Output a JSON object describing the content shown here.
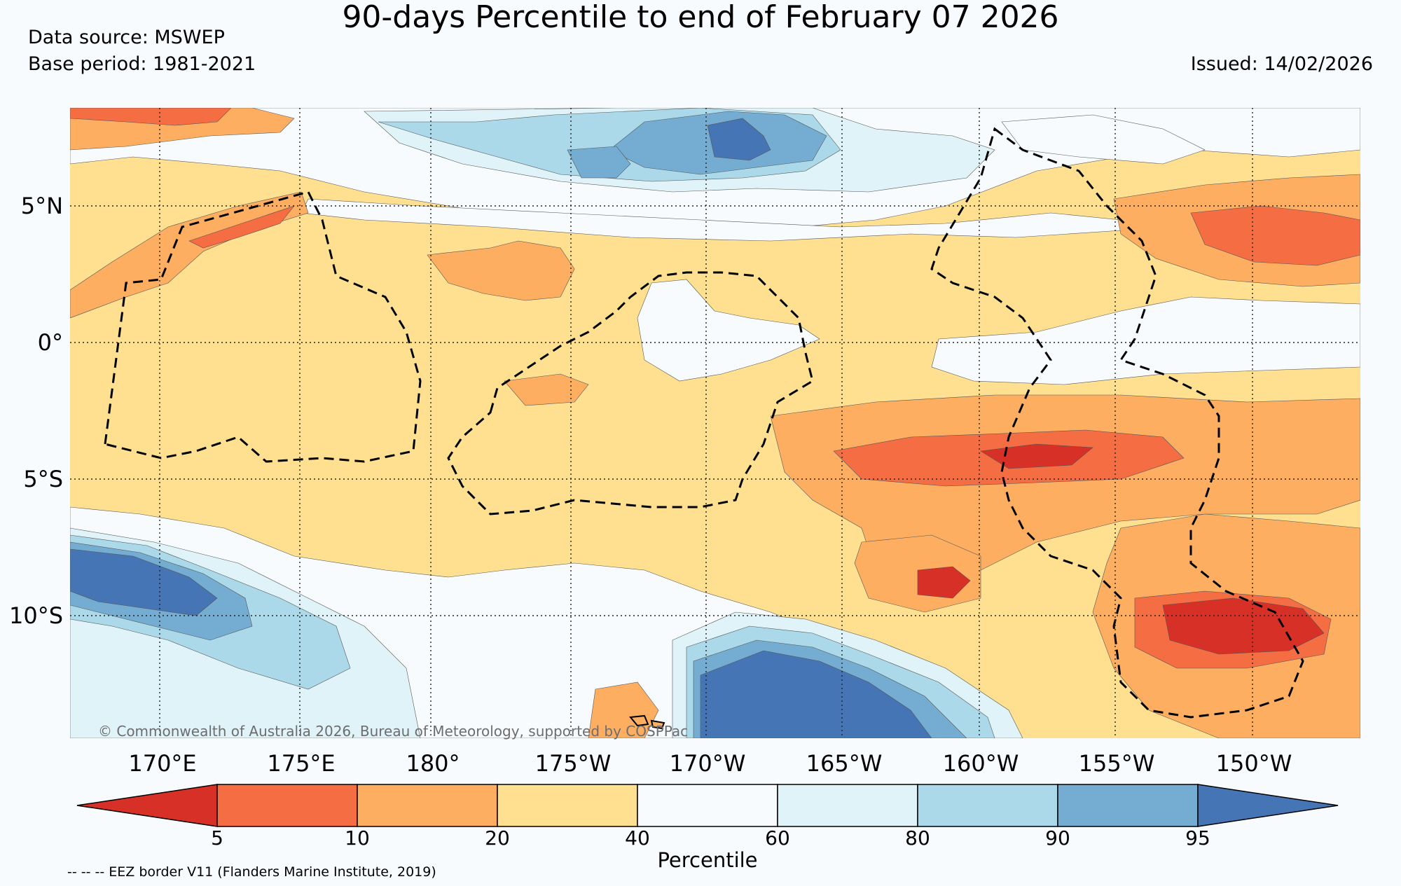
{
  "title": "90-days Percentile to end of February 07 2026",
  "data_source": "Data source: MSWEP",
  "base_period": "Base period: 1981-2021",
  "issued": "Issued: 14/02/2026",
  "copyright": "© Commonwealth of Australia 2026, Bureau of Meteorology, supported by COSPPac",
  "lat_labels": [
    "5°N",
    "0°",
    "5°S",
    "10°S"
  ],
  "lon_labels": [
    "170°E",
    "175°E",
    "180°",
    "175°W",
    "170°W",
    "165°W",
    "160°W",
    "155°W",
    "150°W"
  ],
  "colorbar": {
    "label": "Percentile",
    "ticks": [
      "5",
      "10",
      "20",
      "40",
      "60",
      "80",
      "90",
      "95"
    ],
    "colors": [
      "#d73027",
      "#f46d43",
      "#fdae61",
      "#fee090",
      "#f7fbfd",
      "#e0f3f8",
      "#abd9e9",
      "#74add1",
      "#4575b4"
    ]
  },
  "eez_note": "-- -- -- EEZ border V11 (Flanders Marine Institute, 2019)",
  "map_colors": {
    "p5": "#d73027",
    "p10": "#f46d43",
    "p20": "#fdae61",
    "p40": "#fee090",
    "p60": "#f7fbfd",
    "p80": "#e0f3f8",
    "p90": "#abd9e9",
    "p95": "#74add1",
    "p100": "#4575b4"
  }
}
